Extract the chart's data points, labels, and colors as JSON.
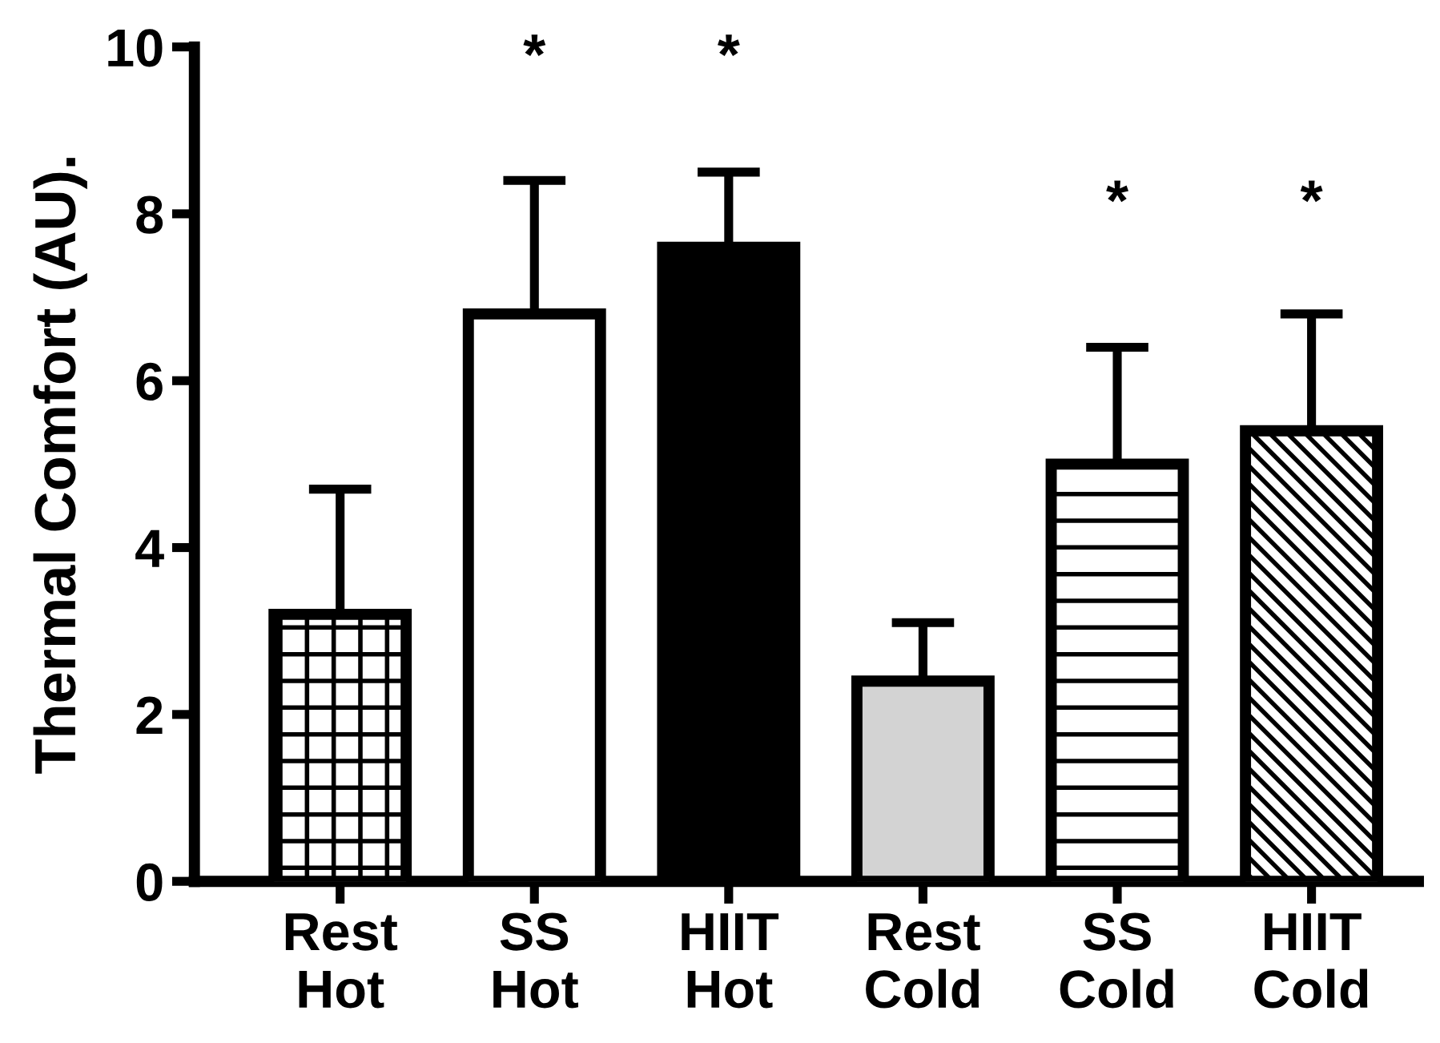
{
  "chart_data": {
    "type": "bar",
    "ylabel": "Thermal Comfort (AU).",
    "categories": [
      "Rest\nHot",
      "SS\nHot",
      "HIIT\nHot",
      "Rest\nCold",
      "SS\nCold",
      "HIIT\nCold"
    ],
    "values": [
      3.2,
      6.8,
      7.6,
      2.4,
      5.0,
      5.4
    ],
    "errors": [
      [
        3.2,
        4.7
      ],
      [
        6.8,
        8.4
      ],
      [
        7.6,
        8.5
      ],
      [
        2.4,
        3.1
      ],
      [
        5.0,
        6.4
      ],
      [
        5.4,
        6.8
      ]
    ],
    "colors": [
      "#ffffff",
      "#ffffff",
      "#000000",
      "#d3d3d3",
      "#ffffff",
      "#ffffff"
    ],
    "ylim": [
      0,
      10
    ],
    "yticks": [
      0,
      2,
      4,
      6,
      8,
      10
    ],
    "annotations": [
      "*",
      "*",
      "*",
      "*"
    ]
  }
}
